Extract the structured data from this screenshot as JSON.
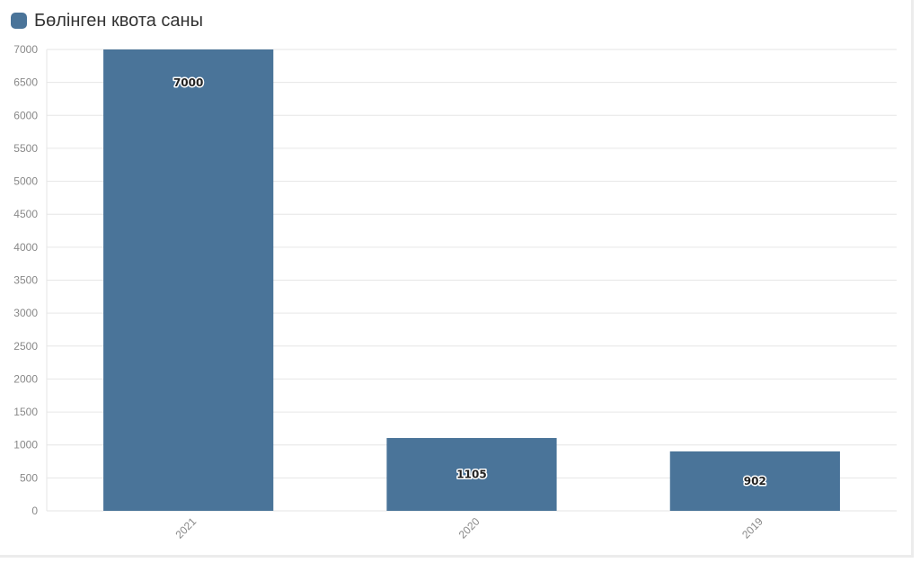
{
  "chart_data": {
    "type": "bar",
    "title": "",
    "xlabel": "",
    "ylabel": "",
    "categories": [
      "2021",
      "2020",
      "2019"
    ],
    "series": [
      {
        "name": "Бөлінген квота саны",
        "values": [
          7000,
          1105,
          902
        ]
      }
    ],
    "data_labels": [
      "7000",
      "1105",
      "902"
    ],
    "ylim": [
      0,
      7000
    ],
    "yticks": [
      0,
      500,
      1000,
      1500,
      2000,
      2500,
      3000,
      3500,
      4000,
      4500,
      5000,
      5500,
      6000,
      6500,
      7000
    ],
    "grid": true,
    "legend_position": "top-left",
    "colors": {
      "bar": "#4a7499",
      "grid": "#e6e6e6",
      "axis_text": "#888888"
    }
  }
}
